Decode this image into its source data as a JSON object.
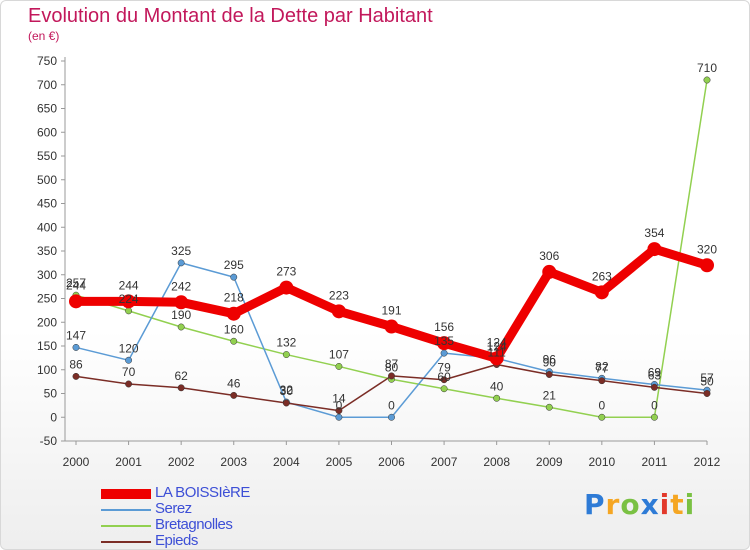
{
  "header": {
    "title": "Evolution du Montant de la Dette par Habitant",
    "subtitle": "(en €)"
  },
  "logo": {
    "letters": [
      "P",
      "r",
      "o",
      "x",
      "i",
      "t",
      "i"
    ]
  },
  "chart_data": {
    "type": "line",
    "title": "Evolution du Montant de la Dette par Habitant",
    "subtitle": "(en €)",
    "xlabel": "",
    "ylabel": "",
    "x": [
      "2000",
      "2001",
      "2002",
      "2003",
      "2004",
      "2005",
      "2006",
      "2007",
      "2008",
      "2009",
      "2010",
      "2011",
      "2012"
    ],
    "ylim": [
      -50,
      750
    ],
    "yticks": [
      -50,
      0,
      50,
      100,
      150,
      200,
      250,
      300,
      350,
      400,
      450,
      500,
      550,
      600,
      650,
      700,
      750
    ],
    "grid": false,
    "legend_position": "bottom-left",
    "series": [
      {
        "name": "LA BOISSIèRE",
        "color": "#ee0000",
        "values": [
          244,
          244,
          242,
          218,
          273,
          223,
          191,
          156,
          124,
          306,
          263,
          354,
          320
        ]
      },
      {
        "name": "Serez",
        "color": "#5b9bd5",
        "values": [
          147,
          120,
          325,
          295,
          32,
          0,
          0,
          135,
          124,
          96,
          82,
          69,
          57
        ]
      },
      {
        "name": "Bretagnolles",
        "color": "#92d050",
        "values": [
          257,
          224,
          190,
          160,
          132,
          107,
          80,
          60,
          40,
          21,
          0,
          0,
          710
        ]
      },
      {
        "name": "Epieds",
        "color": "#7b2d26",
        "values": [
          86,
          70,
          62,
          46,
          30,
          14,
          87,
          79,
          111,
          90,
          77,
          63,
          50
        ]
      }
    ]
  }
}
